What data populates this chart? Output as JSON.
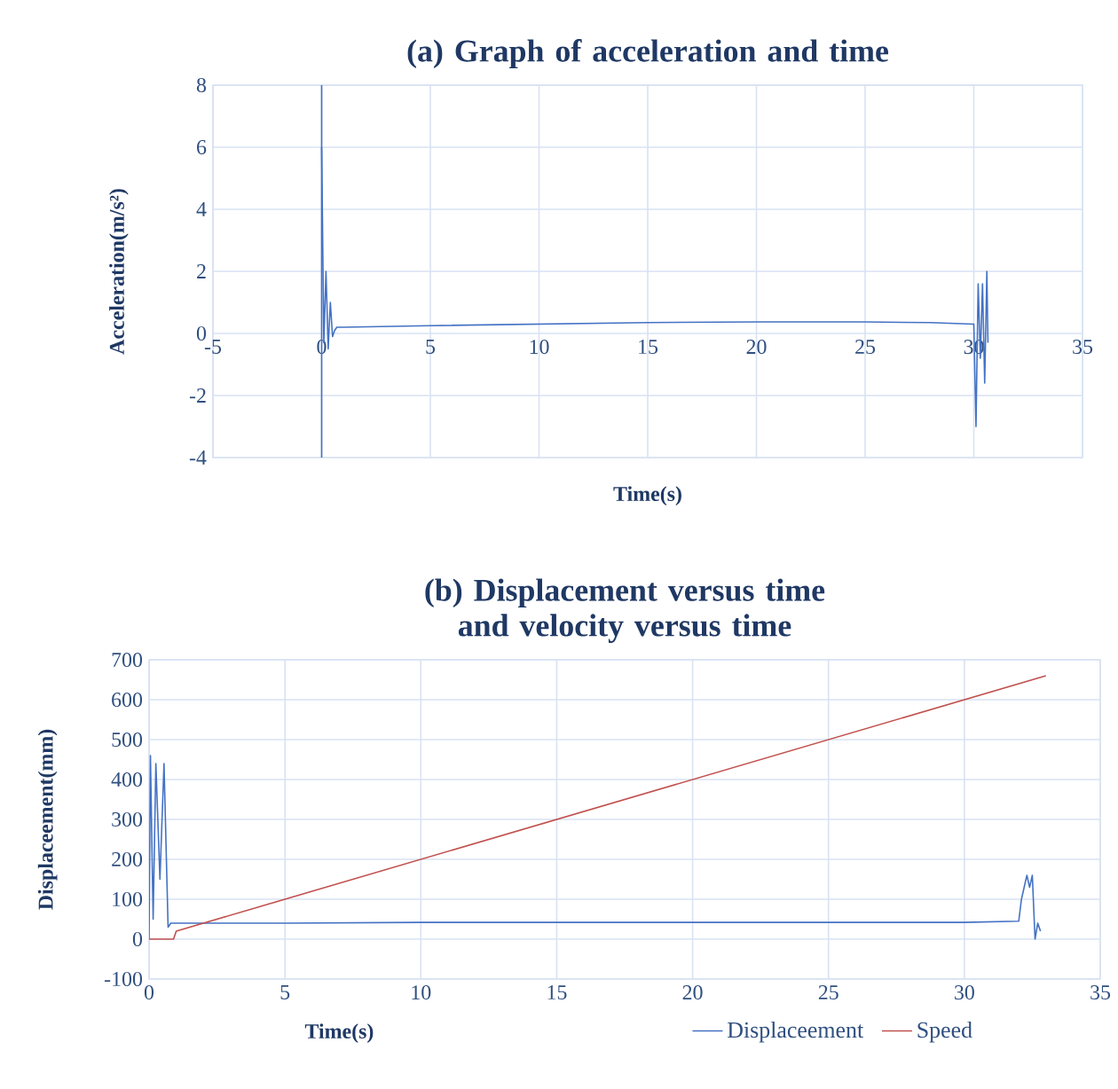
{
  "chart_data": [
    {
      "type": "line",
      "title": "(a)  Graph of acceleration and time",
      "xlabel": "Time(s)",
      "ylabel": "Acceleration(m/s²)",
      "xlim": [
        -5,
        35
      ],
      "ylim": [
        -4,
        8
      ],
      "xticks": [
        -5,
        0,
        5,
        10,
        15,
        20,
        25,
        30,
        35
      ],
      "yticks": [
        -4,
        -2,
        0,
        2,
        4,
        6,
        8
      ],
      "grid": true,
      "ref_lines": [
        {
          "axis": "x",
          "value": 0,
          "color": "#4472c4"
        }
      ],
      "series": [
        {
          "color": "#4472c4",
          "x": [
            0,
            0.1,
            0.2,
            0.3,
            0.4,
            0.5,
            0.6,
            0.7,
            1,
            5,
            10,
            15,
            20,
            25,
            28,
            30,
            30.1,
            30.2,
            30.3,
            30.4,
            30.5,
            30.6,
            30.65
          ],
          "values": [
            6,
            -0.3,
            2,
            -0.5,
            1,
            -0.1,
            0.1,
            0.2,
            0.2,
            0.25,
            0.3,
            0.35,
            0.37,
            0.37,
            0.35,
            0.3,
            -3,
            1.6,
            -0.8,
            1.6,
            -1.6,
            2,
            -0.3
          ]
        }
      ]
    },
    {
      "type": "line",
      "title": "(b) Displacement versus time and velocity versus time",
      "xlabel": "Time(s)",
      "ylabel": "Displaceement(mm)",
      "xlim": [
        0,
        35
      ],
      "ylim": [
        -100,
        700
      ],
      "xticks": [
        0,
        5,
        10,
        15,
        20,
        25,
        30,
        35
      ],
      "yticks": [
        -100,
        0,
        100,
        200,
        300,
        400,
        500,
        600,
        700
      ],
      "grid": true,
      "legend": "bottom",
      "series": [
        {
          "name": "Displaceement",
          "color": "#4472c4",
          "x": [
            0,
            0.05,
            0.15,
            0.25,
            0.4,
            0.55,
            0.7,
            0.8,
            5,
            10,
            20,
            30,
            32,
            32.1,
            32.3,
            32.4,
            32.5,
            32.6,
            32.7,
            32.8
          ],
          "values": [
            0,
            460,
            50,
            440,
            150,
            440,
            30,
            40,
            40,
            42,
            42,
            42,
            45,
            100,
            160,
            130,
            160,
            0,
            40,
            20
          ]
        },
        {
          "name": "Speed",
          "color": "#c0504d",
          "x": [
            0,
            0.9,
            1,
            33
          ],
          "values": [
            0,
            0,
            20,
            660
          ]
        }
      ]
    }
  ]
}
